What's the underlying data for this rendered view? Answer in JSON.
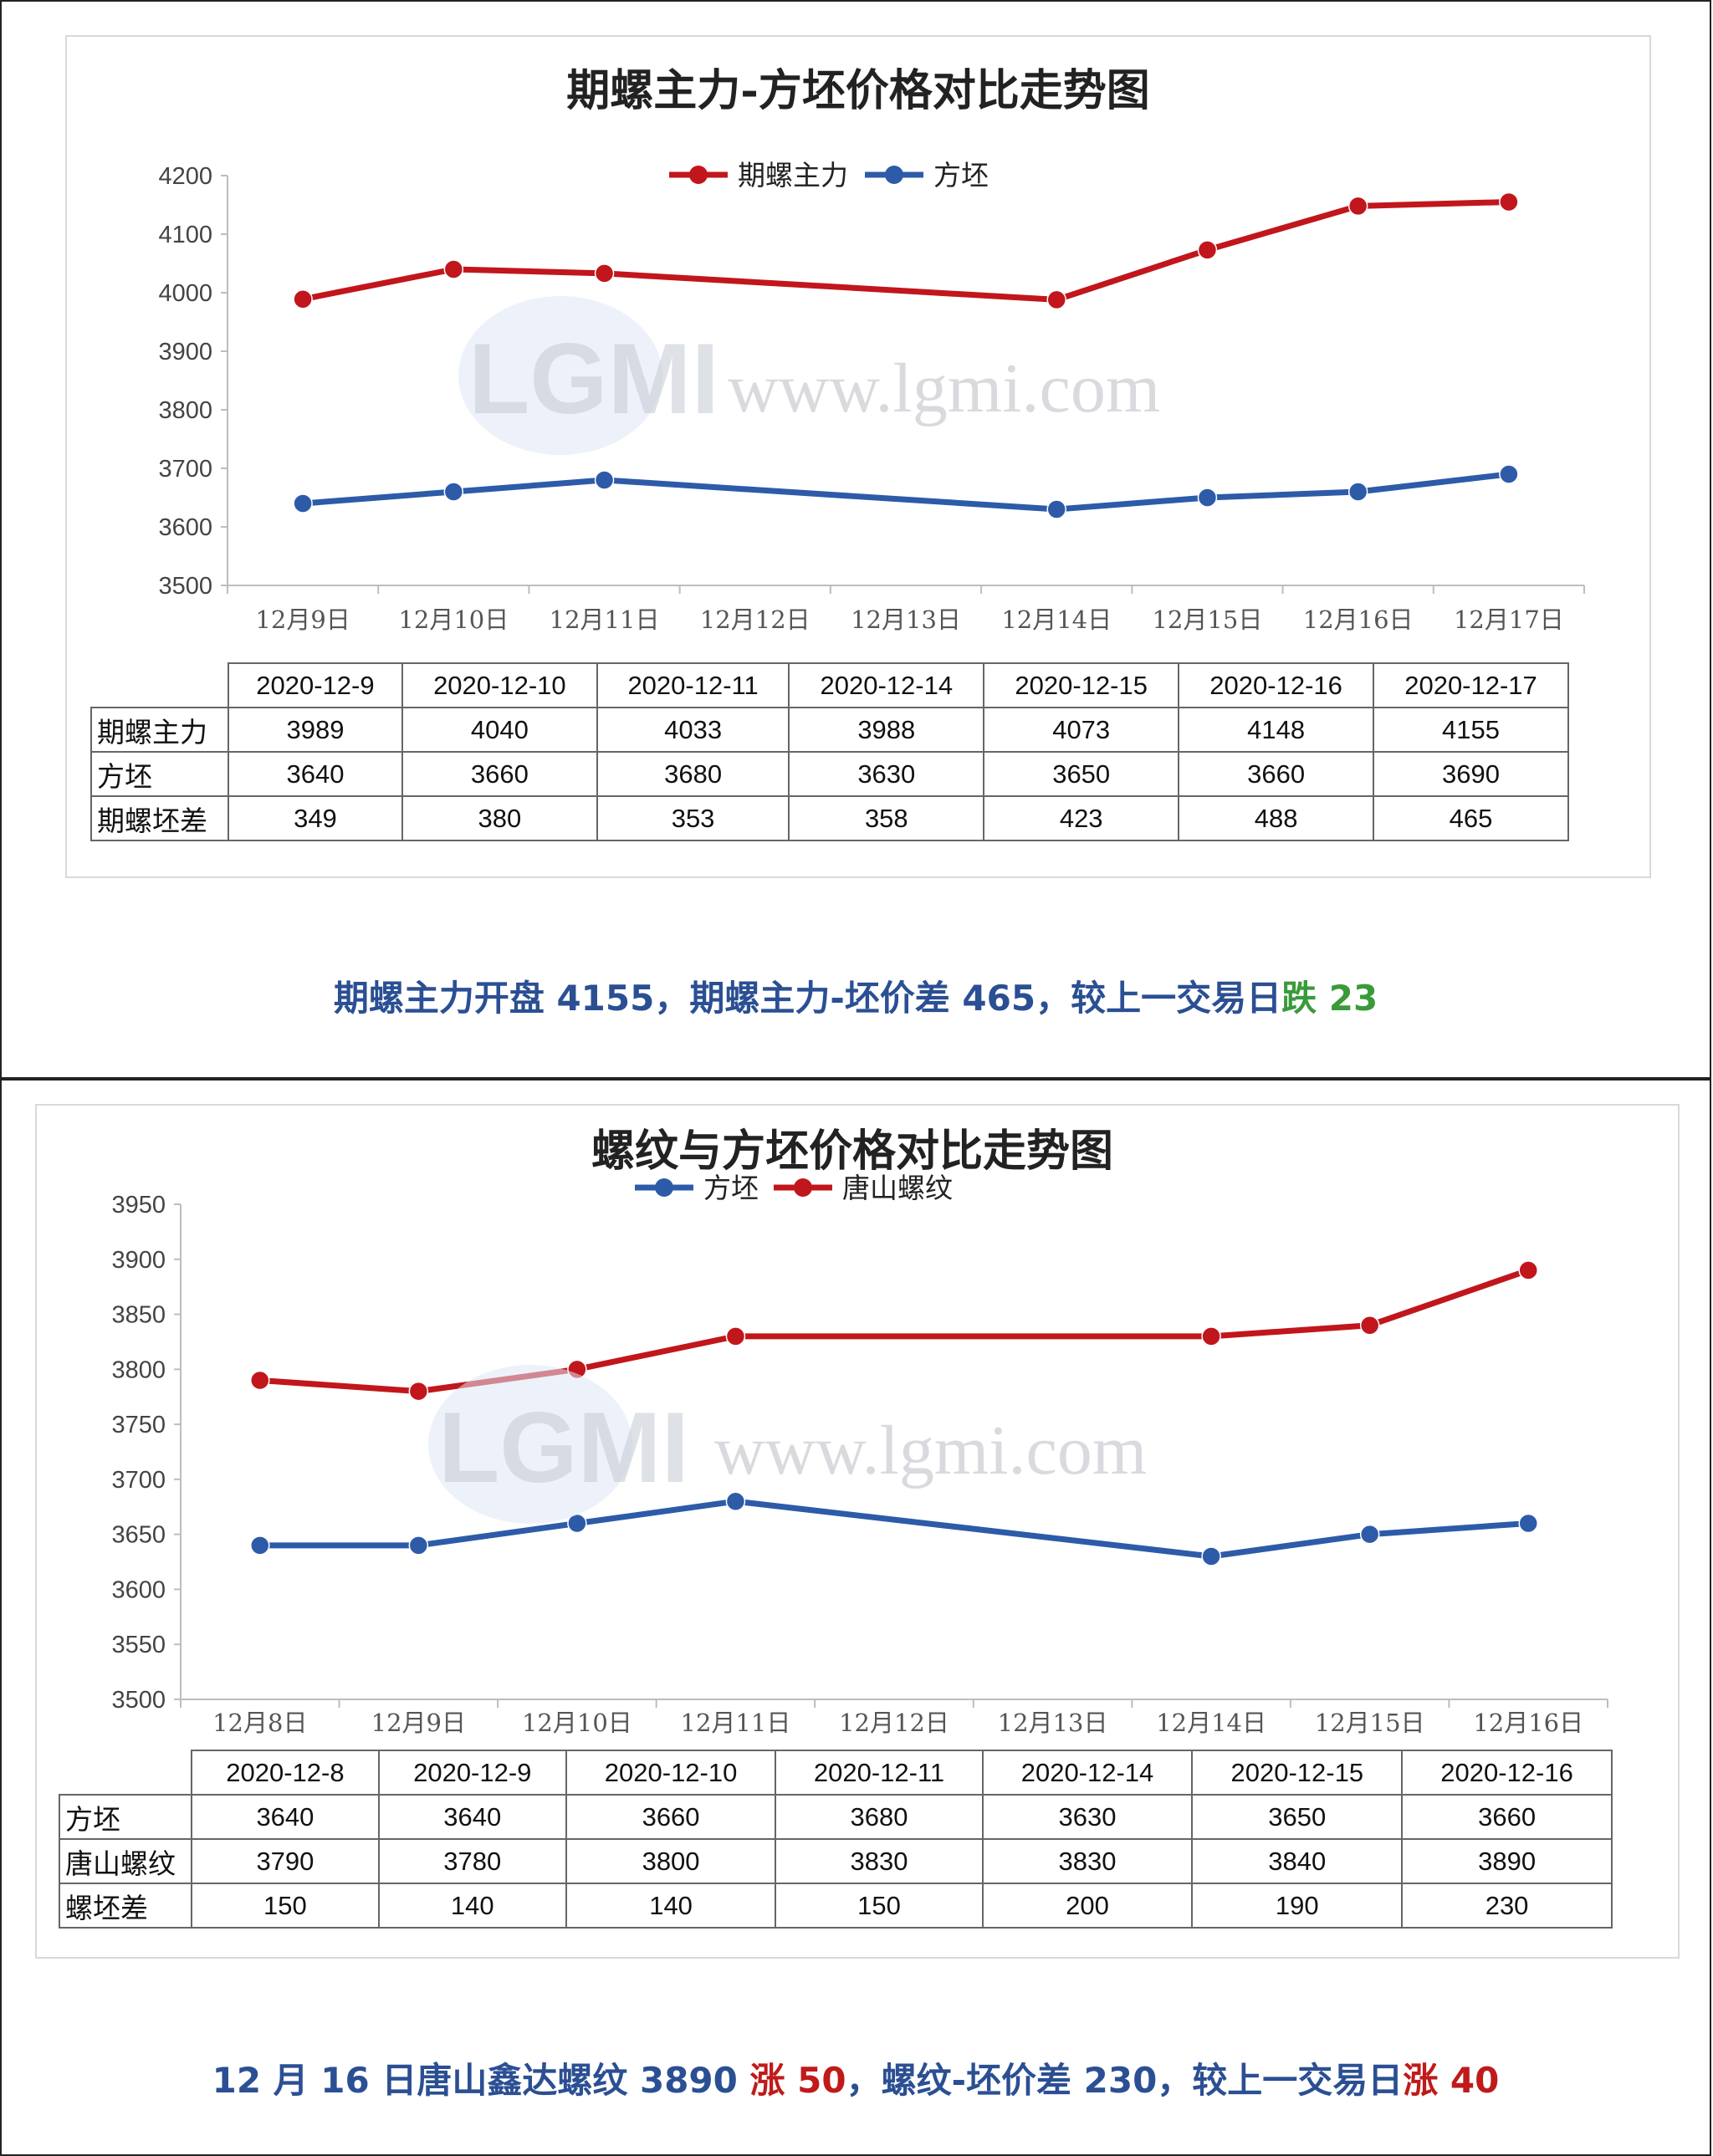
{
  "colors": {
    "red_series": "#c1161c",
    "blue_series": "#2d5ba8",
    "summary_blue": "#2b4f93",
    "down_green": "#3a9a3a",
    "up_red": "#c01a1a"
  },
  "chart_data": [
    {
      "type": "line",
      "title": "期螺主力-方坯价格对比走势图",
      "categories": [
        "12月9日",
        "12月10日",
        "12月11日",
        "12月12日",
        "12月13日",
        "12月14日",
        "12月15日",
        "12月16日",
        "12月17日"
      ],
      "series": [
        {
          "name": "期螺主力",
          "color": "#c1161c",
          "points": [
            [
              "12月9日",
              3989
            ],
            [
              "12月10日",
              4040
            ],
            [
              "12月11日",
              4033
            ],
            [
              "12月14日",
              3988
            ],
            [
              "12月15日",
              4073
            ],
            [
              "12月16日",
              4148
            ],
            [
              "12月17日",
              4155
            ]
          ]
        },
        {
          "name": "方坯",
          "color": "#2d5ba8",
          "points": [
            [
              "12月9日",
              3640
            ],
            [
              "12月10日",
              3660
            ],
            [
              "12月11日",
              3680
            ],
            [
              "12月14日",
              3630
            ],
            [
              "12月15日",
              3650
            ],
            [
              "12月16日",
              3660
            ],
            [
              "12月17日",
              3690
            ]
          ]
        }
      ],
      "yticks": [
        "4200",
        "4100",
        "4000",
        "3900",
        "3800",
        "3700",
        "3600",
        "3500"
      ],
      "ylim": [
        3500,
        4200
      ],
      "legend": "top-center",
      "table": {
        "dates": [
          "2020-12-9",
          "2020-12-10",
          "2020-12-11",
          "2020-12-14",
          "2020-12-15",
          "2020-12-16",
          "2020-12-17"
        ],
        "rows": [
          {
            "label": "期螺主力",
            "values": [
              "3989",
              "4040",
              "4033",
              "3988",
              "4073",
              "4148",
              "4155"
            ]
          },
          {
            "label": "方坯",
            "values": [
              "3640",
              "3660",
              "3680",
              "3630",
              "3650",
              "3660",
              "3690"
            ]
          },
          {
            "label": "期螺坯差",
            "values": [
              "349",
              "380",
              "353",
              "358",
              "423",
              "488",
              "465"
            ]
          }
        ]
      }
    },
    {
      "type": "line",
      "title": "螺纹与方坯价格对比走势图",
      "categories": [
        "12月8日",
        "12月9日",
        "12月10日",
        "12月11日",
        "12月12日",
        "12月13日",
        "12月14日",
        "12月15日",
        "12月16日"
      ],
      "series": [
        {
          "name": "方坯",
          "color": "#2d5ba8",
          "points": [
            [
              "12月8日",
              3640
            ],
            [
              "12月9日",
              3640
            ],
            [
              "12月10日",
              3660
            ],
            [
              "12月11日",
              3680
            ],
            [
              "12月14日",
              3630
            ],
            [
              "12月15日",
              3650
            ],
            [
              "12月16日",
              3660
            ]
          ]
        },
        {
          "name": "唐山螺纹",
          "color": "#c1161c",
          "points": [
            [
              "12月8日",
              3790
            ],
            [
              "12月9日",
              3780
            ],
            [
              "12月10日",
              3800
            ],
            [
              "12月11日",
              3830
            ],
            [
              "12月14日",
              3830
            ],
            [
              "12月15日",
              3840
            ],
            [
              "12月16日",
              3890
            ]
          ]
        }
      ],
      "yticks": [
        "3950",
        "3900",
        "3850",
        "3800",
        "3750",
        "3700",
        "3650",
        "3600",
        "3550",
        "3500"
      ],
      "ylim": [
        3500,
        3950
      ],
      "legend": "top-center",
      "table": {
        "dates": [
          "2020-12-8",
          "2020-12-9",
          "2020-12-10",
          "2020-12-11",
          "2020-12-14",
          "2020-12-15",
          "2020-12-16"
        ],
        "rows": [
          {
            "label": "方坯",
            "values": [
              "3640",
              "3640",
              "3660",
              "3680",
              "3630",
              "3650",
              "3660"
            ]
          },
          {
            "label": "唐山螺纹",
            "values": [
              "3790",
              "3780",
              "3800",
              "3830",
              "3830",
              "3840",
              "3890"
            ]
          },
          {
            "label": "螺坯差",
            "values": [
              "150",
              "140",
              "140",
              "150",
              "200",
              "190",
              "230"
            ]
          }
        ]
      }
    }
  ],
  "summary_1": {
    "part1": "期螺主力开盘 4155，期螺主力-坯价差 465，较上一交易日",
    "dir": "跌",
    "num": " 23"
  },
  "summary_2": {
    "part1": "12 月 16 日唐山鑫达螺纹 3890 ",
    "up1": "涨 50",
    "part2": "，螺纹-坯价差 230，较上一交易日",
    "up2": "涨 40"
  },
  "watermark": {
    "logo": "LGMI",
    "url": "www.lgmi.com"
  }
}
